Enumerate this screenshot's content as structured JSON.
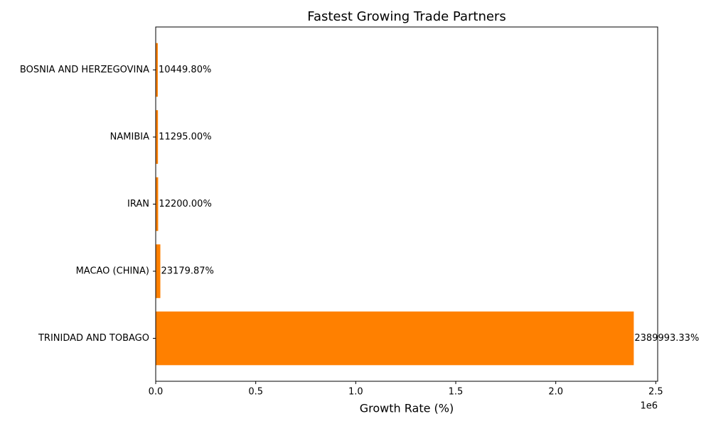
{
  "chart_data": {
    "type": "barh",
    "title": "Fastest Growing Trade Partners",
    "x_label": "Growth Rate (%)",
    "x_offset_label": "1e6",
    "categories": [
      "TRINIDAD AND TOBAGO",
      "MACAO (CHINA)",
      "IRAN",
      "NAMIBIA",
      "BOSNIA AND HERZEGOVINA"
    ],
    "values": [
      2389993.33,
      23179.87,
      12200.0,
      11295.0,
      10449.8
    ],
    "value_labels": [
      "2389993.33%",
      "23179.87%",
      "12200.00%",
      "11295.00%",
      "10449.80%"
    ],
    "color": "#ff8000",
    "xlim": [
      0,
      2509493
    ],
    "xticks": [
      {
        "value": 0,
        "label": "0.0"
      },
      {
        "value": 500000,
        "label": "0.5"
      },
      {
        "value": 1000000,
        "label": "1.0"
      },
      {
        "value": 1500000,
        "label": "1.5"
      },
      {
        "value": 2000000,
        "label": "2.0"
      },
      {
        "value": 2500000,
        "label": "2.5"
      }
    ],
    "grid": false
  }
}
